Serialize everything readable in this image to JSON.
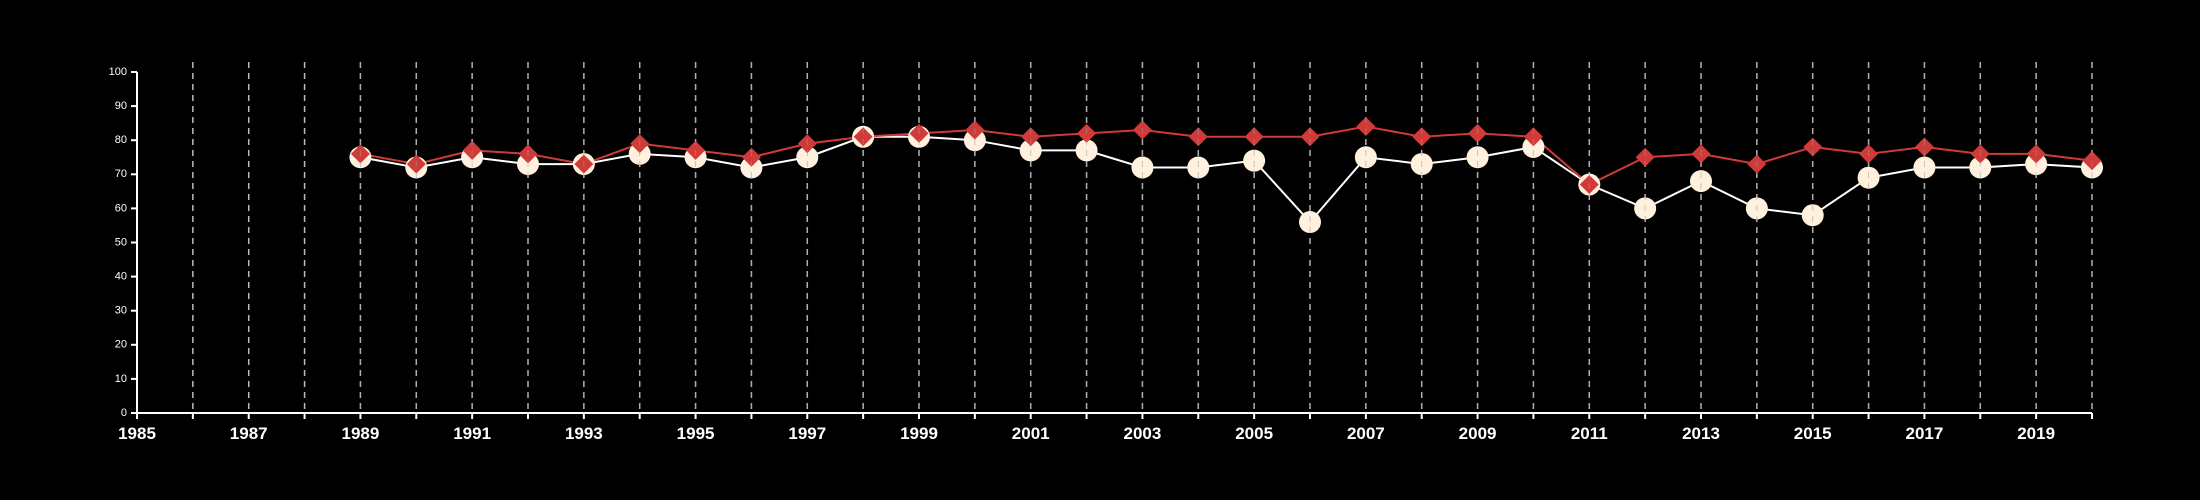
{
  "chart_data": {
    "type": "line",
    "title": "",
    "xlabel": "",
    "ylabel": "",
    "xlim": [
      1985,
      2020
    ],
    "ylim": [
      0,
      100
    ],
    "x_ticks": [
      1985,
      1987,
      1989,
      1991,
      1993,
      1995,
      1997,
      1999,
      2001,
      2003,
      2005,
      2007,
      2009,
      2011,
      2013,
      2015,
      2017,
      2019
    ],
    "y_ticks": [
      0,
      10,
      20,
      30,
      40,
      50,
      60,
      70,
      80,
      90,
      100
    ],
    "vertical_gridlines": "dashed, every year",
    "legend": "none",
    "series": [
      {
        "color": "#fff1dd",
        "marker": "circle",
        "line_color": "#ffffff",
        "x": [
          1989,
          1990,
          1991,
          1992,
          1993,
          1994,
          1995,
          1996,
          1997,
          1998,
          1999,
          2000,
          2001,
          2002,
          2003,
          2004,
          2005,
          2006,
          2007,
          2008,
          2009,
          2010,
          2011,
          2012,
          2013,
          2014,
          2015,
          2016,
          2017,
          2018,
          2019,
          2020
        ],
        "y": [
          75,
          72,
          75,
          73,
          73,
          76,
          75,
          72,
          75,
          81,
          81,
          80,
          77,
          77,
          72,
          72,
          74,
          56,
          75,
          73,
          75,
          78,
          67,
          60,
          68,
          60,
          58,
          69,
          72,
          72,
          73,
          72
        ]
      },
      {
        "color": "#d03a38",
        "marker": "diamond",
        "line_color": "#d03a38",
        "x": [
          1989,
          1990,
          1991,
          1992,
          1993,
          1994,
          1995,
          1996,
          1997,
          1998,
          1999,
          2000,
          2001,
          2002,
          2003,
          2004,
          2005,
          2006,
          2007,
          2008,
          2009,
          2010,
          2011,
          2012,
          2013,
          2014,
          2015,
          2016,
          2017,
          2018,
          2019,
          2020
        ],
        "y": [
          76,
          73,
          77,
          76,
          73,
          79,
          77,
          75,
          79,
          81,
          82,
          83,
          81,
          82,
          83,
          81,
          81,
          81,
          84,
          81,
          82,
          81,
          67,
          75,
          76,
          73,
          78,
          76,
          78,
          76,
          76,
          74
        ]
      }
    ]
  }
}
